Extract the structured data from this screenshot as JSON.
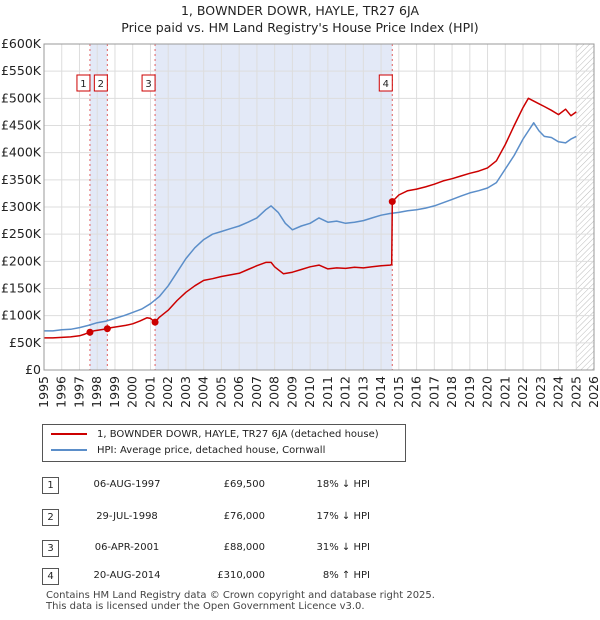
{
  "chart_data": {
    "type": "line",
    "title": "1, BOWNDER DOWR, HAYLE, TR27 6JA",
    "subtitle": "Price paid vs. HM Land Registry's House Price Index (HPI)",
    "xlabel": "",
    "ylabel": "",
    "xlim": [
      1995,
      2026
    ],
    "ylim": [
      0,
      600000
    ],
    "x_ticks": [
      "1995",
      "1996",
      "1997",
      "1998",
      "1999",
      "2000",
      "2001",
      "2002",
      "2003",
      "2004",
      "2005",
      "2006",
      "2007",
      "2008",
      "2009",
      "2010",
      "2011",
      "2012",
      "2013",
      "2014",
      "2015",
      "2016",
      "2017",
      "2018",
      "2019",
      "2020",
      "2021",
      "2022",
      "2023",
      "2024",
      "2025",
      "2026"
    ],
    "y_ticks": [
      {
        "value": 0,
        "label": "£0"
      },
      {
        "value": 50000,
        "label": "£50K"
      },
      {
        "value": 100000,
        "label": "£100K"
      },
      {
        "value": 150000,
        "label": "£150K"
      },
      {
        "value": 200000,
        "label": "£200K"
      },
      {
        "value": 250000,
        "label": "£250K"
      },
      {
        "value": 300000,
        "label": "£300K"
      },
      {
        "value": 350000,
        "label": "£350K"
      },
      {
        "value": 400000,
        "label": "£400K"
      },
      {
        "value": 450000,
        "label": "£450K"
      },
      {
        "value": 500000,
        "label": "£500K"
      },
      {
        "value": 550000,
        "label": "£550K"
      },
      {
        "value": 600000,
        "label": "£600K"
      }
    ],
    "grid": true,
    "shaded_ranges": [
      [
        1997.59,
        1998.57
      ],
      [
        2001.26,
        2014.63
      ]
    ],
    "hatched_from": 2025.0,
    "series": [
      {
        "name": "1, BOWNDER DOWR, HAYLE, TR27 6JA (detached house)",
        "color": "#cc0000",
        "x": [
          1995.0,
          1995.5,
          1996.0,
          1996.5,
          1997.0,
          1997.3,
          1997.59,
          1997.8,
          1998.2,
          1998.57,
          1998.8,
          1999.2,
          1999.6,
          2000.0,
          2000.4,
          2000.8,
          2001.0,
          2001.26,
          2001.5,
          2002.0,
          2002.5,
          2003.0,
          2003.5,
          2004.0,
          2004.5,
          2005.0,
          2005.5,
          2006.0,
          2006.5,
          2007.0,
          2007.5,
          2007.8,
          2008.0,
          2008.5,
          2009.0,
          2009.5,
          2010.0,
          2010.5,
          2011.0,
          2011.5,
          2012.0,
          2012.5,
          2013.0,
          2013.5,
          2014.0,
          2014.5,
          2014.6,
          2014.63,
          2015.0,
          2015.5,
          2016.0,
          2016.5,
          2017.0,
          2017.5,
          2018.0,
          2018.5,
          2019.0,
          2019.5,
          2020.0,
          2020.5,
          2021.0,
          2021.5,
          2022.0,
          2022.3,
          2022.6,
          2022.9,
          2023.2,
          2023.6,
          2024.0,
          2024.4,
          2024.7,
          2025.0
        ],
        "values": [
          59000,
          59000,
          60000,
          61000,
          63000,
          66000,
          69500,
          72000,
          74000,
          76000,
          78000,
          80000,
          82000,
          85000,
          90000,
          96000,
          95000,
          88000,
          97000,
          110000,
          128000,
          143000,
          155000,
          165000,
          168000,
          172000,
          175000,
          178000,
          185000,
          192000,
          198000,
          198000,
          190000,
          177000,
          180000,
          185000,
          190000,
          193000,
          186000,
          188000,
          187000,
          189000,
          188000,
          190000,
          192000,
          193000,
          194000,
          310000,
          322000,
          330000,
          333000,
          337000,
          342000,
          348000,
          352000,
          357000,
          362000,
          366000,
          372000,
          385000,
          415000,
          450000,
          483000,
          500000,
          495000,
          490000,
          485000,
          478000,
          470000,
          480000,
          468000,
          475000
        ]
      },
      {
        "name": "HPI: Average price, detached house, Cornwall",
        "color": "#5b8ec9",
        "x": [
          1995.0,
          1995.5,
          1996.0,
          1996.5,
          1997.0,
          1997.5,
          1998.0,
          1998.5,
          1999.0,
          1999.5,
          2000.0,
          2000.5,
          2001.0,
          2001.5,
          2002.0,
          2002.5,
          2003.0,
          2003.5,
          2004.0,
          2004.5,
          2005.0,
          2005.5,
          2006.0,
          2006.5,
          2007.0,
          2007.5,
          2007.8,
          2008.2,
          2008.6,
          2009.0,
          2009.5,
          2010.0,
          2010.5,
          2011.0,
          2011.5,
          2012.0,
          2012.5,
          2013.0,
          2013.5,
          2014.0,
          2014.5,
          2015.0,
          2015.5,
          2016.0,
          2016.5,
          2017.0,
          2017.5,
          2018.0,
          2018.5,
          2019.0,
          2019.5,
          2020.0,
          2020.5,
          2021.0,
          2021.5,
          2022.0,
          2022.3,
          2022.6,
          2022.9,
          2023.2,
          2023.6,
          2024.0,
          2024.4,
          2024.7,
          2025.0
        ],
        "values": [
          72000,
          72000,
          74000,
          75000,
          78000,
          82000,
          87000,
          90000,
          95000,
          100000,
          106000,
          112000,
          122000,
          135000,
          155000,
          180000,
          205000,
          225000,
          240000,
          250000,
          255000,
          260000,
          265000,
          272000,
          280000,
          295000,
          302000,
          290000,
          270000,
          258000,
          265000,
          270000,
          280000,
          272000,
          274000,
          270000,
          272000,
          275000,
          280000,
          285000,
          288000,
          290000,
          293000,
          295000,
          298000,
          302000,
          308000,
          314000,
          320000,
          326000,
          330000,
          335000,
          345000,
          370000,
          395000,
          425000,
          440000,
          455000,
          440000,
          430000,
          428000,
          420000,
          418000,
          425000,
          430000
        ]
      }
    ],
    "markers": [
      {
        "id": "1",
        "x": 1997.59,
        "y": 69500
      },
      {
        "id": "2",
        "x": 1998.57,
        "y": 76000
      },
      {
        "id": "3",
        "x": 2001.26,
        "y": 88000
      },
      {
        "id": "4",
        "x": 2014.63,
        "y": 310000
      }
    ]
  },
  "legend": {
    "property_label": "1, BOWNDER DOWR, HAYLE, TR27 6JA (detached house)",
    "hpi_label": "HPI: Average price, detached house, Cornwall",
    "property_color": "#cc0000",
    "hpi_color": "#5b8ec9"
  },
  "transactions": [
    {
      "num": "1",
      "date": "06-AUG-1997",
      "price": "£69,500",
      "hpi": "18% ↓ HPI"
    },
    {
      "num": "2",
      "date": "29-JUL-1998",
      "price": "£76,000",
      "hpi": "17% ↓ HPI"
    },
    {
      "num": "3",
      "date": "06-APR-2001",
      "price": "£88,000",
      "hpi": "31% ↓ HPI"
    },
    {
      "num": "4",
      "date": "20-AUG-2014",
      "price": "£310,000",
      "hpi": "8% ↑ HPI"
    }
  ],
  "footer": {
    "line1": "Contains HM Land Registry data © Crown copyright and database right 2025.",
    "line2": "This data is licensed under the Open Government Licence v3.0."
  }
}
